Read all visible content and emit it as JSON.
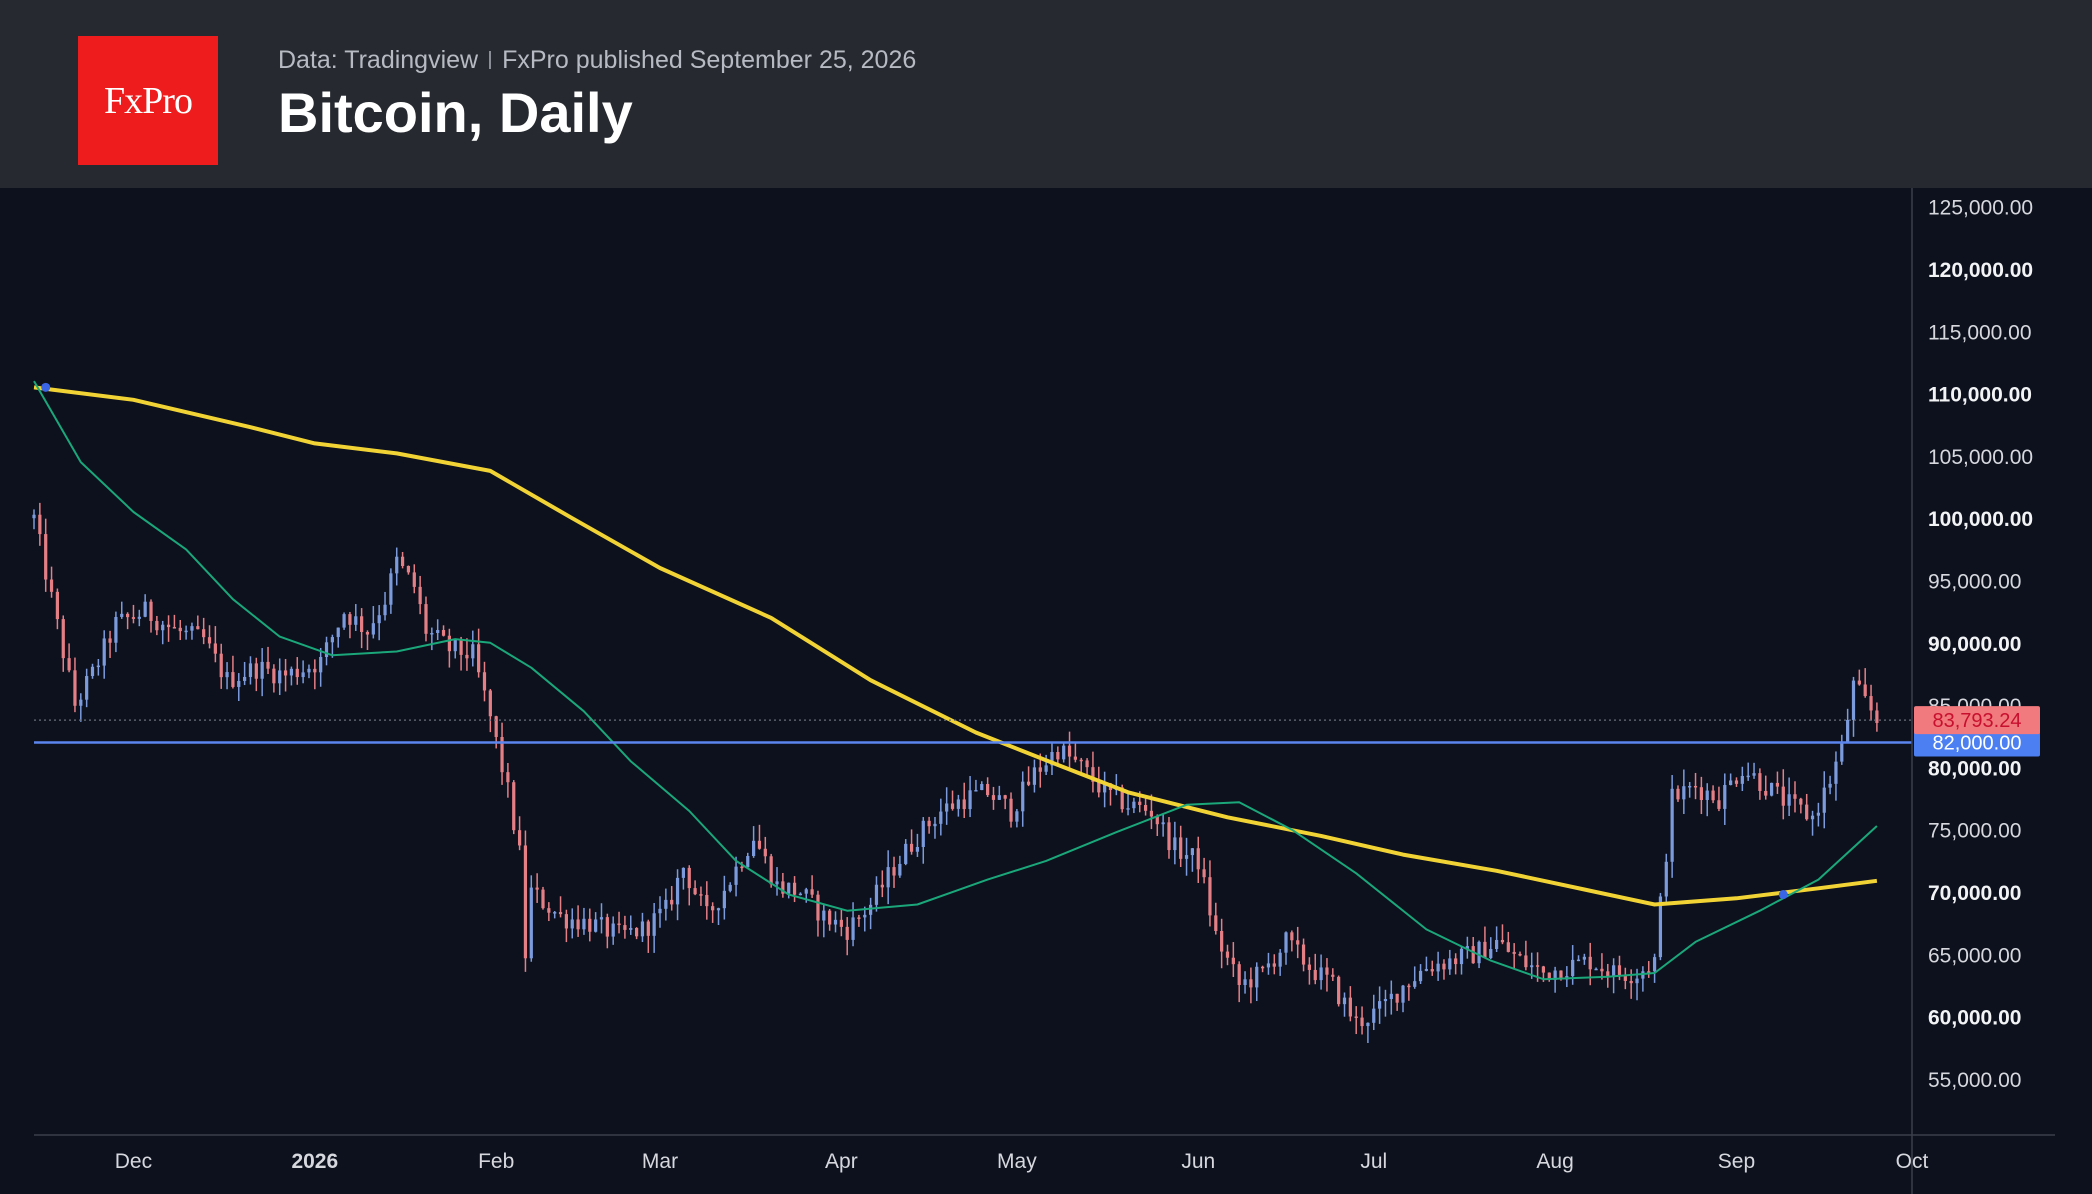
{
  "header": {
    "logo_text": "FxPro",
    "source": "Data: Tradingview",
    "published": "FxPro published September 25, 2026",
    "title": "Bitcoin, Daily"
  },
  "colors": {
    "header_bg": "#262930",
    "chart_bg": "#0c111d",
    "logo_bg": "#ee1c1c",
    "up_candle": "#7b9bdd",
    "down_candle": "#e57f86",
    "ma200": "#f2d335",
    "ma50": "#1ba779",
    "level_line": "#5b86ee",
    "last_price_tag": "#f07a7d",
    "level_tag": "#4b7ff2"
  },
  "chart_data": {
    "type": "line",
    "title": "Bitcoin, Daily",
    "x_tick_labels": [
      {
        "label": "Dec",
        "date": "2025-12-01",
        "major": false
      },
      {
        "label": "2026",
        "date": "2026-01-01",
        "major": true
      },
      {
        "label": "Feb",
        "date": "2026-02-01",
        "major": false
      },
      {
        "label": "Mar",
        "date": "2026-03-01",
        "major": false
      },
      {
        "label": "Apr",
        "date": "2026-04-01",
        "major": false
      },
      {
        "label": "May",
        "date": "2026-05-01",
        "major": false
      },
      {
        "label": "Jun",
        "date": "2026-06-01",
        "major": false
      },
      {
        "label": "Jul",
        "date": "2026-07-01",
        "major": false
      },
      {
        "label": "Aug",
        "date": "2026-08-01",
        "major": false
      },
      {
        "label": "Sep",
        "date": "2026-09-01",
        "major": false
      },
      {
        "label": "Oct",
        "date": "2026-10-01",
        "major": false
      }
    ],
    "y_tick_labels": [
      {
        "value": 55000,
        "label": "55,000.00",
        "major": false
      },
      {
        "value": 60000,
        "label": "60,000.00",
        "major": true
      },
      {
        "value": 65000,
        "label": "65,000.00",
        "major": false
      },
      {
        "value": 70000,
        "label": "70,000.00",
        "major": true
      },
      {
        "value": 75000,
        "label": "75,000.00",
        "major": false
      },
      {
        "value": 80000,
        "label": "80,000.00",
        "major": true
      },
      {
        "value": 85000,
        "label": "85,000.00",
        "major": false
      },
      {
        "value": 90000,
        "label": "90,000.00",
        "major": true
      },
      {
        "value": 95000,
        "label": "95,000.00",
        "major": false
      },
      {
        "value": 100000,
        "label": "100,000.00",
        "major": true
      },
      {
        "value": 105000,
        "label": "105,000.00",
        "major": false
      },
      {
        "value": 110000,
        "label": "110,000.00",
        "major": true
      },
      {
        "value": 115000,
        "label": "115,000.00",
        "major": false
      },
      {
        "value": 120000,
        "label": "120,000.00",
        "major": true
      },
      {
        "value": 125000,
        "label": "125,000.00",
        "major": false
      }
    ],
    "ylim": [
      50500,
      126500
    ],
    "xlim": [
      "2025-11-14",
      "2026-10-01"
    ],
    "price_path": [
      [
        "2025-11-14",
        100000
      ],
      [
        "2025-11-17",
        93500
      ],
      [
        "2025-11-21",
        85000
      ],
      [
        "2025-11-24",
        87500
      ],
      [
        "2025-11-28",
        91500
      ],
      [
        "2025-12-03",
        92500
      ],
      [
        "2025-12-08",
        91000
      ],
      [
        "2025-12-13",
        90200
      ],
      [
        "2025-12-17",
        87000
      ],
      [
        "2025-12-22",
        88000
      ],
      [
        "2025-12-27",
        87400
      ],
      [
        "2026-01-02",
        88500
      ],
      [
        "2026-01-06",
        92500
      ],
      [
        "2026-01-10",
        91000
      ],
      [
        "2026-01-13",
        93500
      ],
      [
        "2026-01-15",
        96500
      ],
      [
        "2026-01-18",
        94500
      ],
      [
        "2026-01-20",
        91000
      ],
      [
        "2026-01-24",
        89500
      ],
      [
        "2026-01-28",
        89000
      ],
      [
        "2026-01-31",
        84000
      ],
      [
        "2026-02-03",
        78000
      ],
      [
        "2026-02-05",
        73000
      ],
      [
        "2026-02-06",
        65000
      ],
      [
        "2026-02-07",
        70000
      ],
      [
        "2026-02-12",
        68000
      ],
      [
        "2026-02-17",
        67500
      ],
      [
        "2026-02-22",
        66500
      ],
      [
        "2026-02-26",
        67000
      ],
      [
        "2026-03-02",
        68500
      ],
      [
        "2026-03-05",
        72000
      ],
      [
        "2026-03-09",
        68000
      ],
      [
        "2026-03-13",
        71000
      ],
      [
        "2026-03-17",
        74500
      ],
      [
        "2026-03-21",
        70500
      ],
      [
        "2026-03-25",
        70000
      ],
      [
        "2026-03-29",
        68000
      ],
      [
        "2026-04-02",
        67000
      ],
      [
        "2026-04-06",
        69000
      ],
      [
        "2026-04-10",
        72000
      ],
      [
        "2026-04-14",
        74500
      ],
      [
        "2026-04-18",
        76500
      ],
      [
        "2026-04-22",
        77500
      ],
      [
        "2026-04-26",
        78000
      ],
      [
        "2026-04-30",
        76500
      ],
      [
        "2026-05-04",
        79500
      ],
      [
        "2026-05-08",
        81500
      ],
      [
        "2026-05-12",
        80000
      ],
      [
        "2026-05-16",
        78000
      ],
      [
        "2026-05-20",
        77000
      ],
      [
        "2026-05-24",
        76500
      ],
      [
        "2026-05-28",
        73500
      ],
      [
        "2026-06-01",
        72500
      ],
      [
        "2026-06-04",
        66500
      ],
      [
        "2026-06-08",
        62500
      ],
      [
        "2026-06-12",
        63500
      ],
      [
        "2026-06-16",
        66000
      ],
      [
        "2026-06-20",
        64000
      ],
      [
        "2026-06-24",
        62500
      ],
      [
        "2026-06-28",
        59500
      ],
      [
        "2026-07-02",
        60500
      ],
      [
        "2026-07-06",
        62500
      ],
      [
        "2026-07-10",
        64000
      ],
      [
        "2026-07-14",
        64500
      ],
      [
        "2026-07-18",
        65000
      ],
      [
        "2026-07-22",
        66000
      ],
      [
        "2026-07-26",
        64500
      ],
      [
        "2026-07-30",
        63500
      ],
      [
        "2026-08-03",
        64000
      ],
      [
        "2026-08-07",
        64500
      ],
      [
        "2026-08-11",
        63500
      ],
      [
        "2026-08-15",
        63500
      ],
      [
        "2026-08-18",
        64500
      ],
      [
        "2026-08-19",
        69000
      ],
      [
        "2026-08-21",
        77500
      ],
      [
        "2026-08-25",
        78500
      ],
      [
        "2026-08-29",
        77500
      ],
      [
        "2026-09-02",
        80000
      ],
      [
        "2026-09-06",
        78500
      ],
      [
        "2026-09-10",
        77000
      ],
      [
        "2026-09-14",
        76000
      ],
      [
        "2026-09-17",
        79000
      ],
      [
        "2026-09-19",
        81500
      ],
      [
        "2026-09-21",
        86500
      ],
      [
        "2026-09-24",
        84500
      ],
      [
        "2026-09-25",
        83800
      ]
    ],
    "series": [
      {
        "name": "",
        "kind": "ma_long",
        "color": "#f2d335",
        "points": [
          [
            "2025-11-14",
            110500
          ],
          [
            "2025-12-01",
            109500
          ],
          [
            "2025-12-21",
            107300
          ],
          [
            "2026-01-01",
            106000
          ],
          [
            "2026-01-15",
            105200
          ],
          [
            "2026-01-31",
            103800
          ],
          [
            "2026-02-14",
            100000
          ],
          [
            "2026-03-01",
            96000
          ],
          [
            "2026-03-20",
            92000
          ],
          [
            "2026-04-06",
            87000
          ],
          [
            "2026-04-24",
            82800
          ],
          [
            "2026-05-08",
            80200
          ],
          [
            "2026-05-20",
            78000
          ],
          [
            "2026-06-06",
            76000
          ],
          [
            "2026-06-22",
            74500
          ],
          [
            "2026-07-06",
            73000
          ],
          [
            "2026-07-22",
            71700
          ],
          [
            "2026-08-06",
            70200
          ],
          [
            "2026-08-18",
            69000
          ],
          [
            "2026-09-01",
            69500
          ],
          [
            "2026-09-15",
            70300
          ],
          [
            "2026-09-25",
            70900
          ]
        ]
      },
      {
        "name": "",
        "kind": "ma_short",
        "color": "#1ba779",
        "points": [
          [
            "2025-11-14",
            111000
          ],
          [
            "2025-11-22",
            104500
          ],
          [
            "2025-12-01",
            100500
          ],
          [
            "2025-12-10",
            97500
          ],
          [
            "2025-12-18",
            93500
          ],
          [
            "2025-12-26",
            90500
          ],
          [
            "2026-01-04",
            89000
          ],
          [
            "2026-01-15",
            89300
          ],
          [
            "2026-01-25",
            90300
          ],
          [
            "2026-01-31",
            90000
          ],
          [
            "2026-02-07",
            88000
          ],
          [
            "2026-02-16",
            84500
          ],
          [
            "2026-02-24",
            80500
          ],
          [
            "2026-03-06",
            76500
          ],
          [
            "2026-03-14",
            72500
          ],
          [
            "2026-03-23",
            69800
          ],
          [
            "2026-04-02",
            68500
          ],
          [
            "2026-04-14",
            69000
          ],
          [
            "2026-04-26",
            71000
          ],
          [
            "2026-05-06",
            72500
          ],
          [
            "2026-05-18",
            74800
          ],
          [
            "2026-05-30",
            77000
          ],
          [
            "2026-06-08",
            77200
          ],
          [
            "2026-06-17",
            75000
          ],
          [
            "2026-06-28",
            71500
          ],
          [
            "2026-07-10",
            67000
          ],
          [
            "2026-07-21",
            64500
          ],
          [
            "2026-07-30",
            63000
          ],
          [
            "2026-08-10",
            63200
          ],
          [
            "2026-08-18",
            63500
          ],
          [
            "2026-08-25",
            66000
          ],
          [
            "2026-09-05",
            68500
          ],
          [
            "2026-09-15",
            71000
          ],
          [
            "2026-09-25",
            75300
          ]
        ]
      }
    ],
    "cross_markers": [
      {
        "date": "2025-11-16",
        "value": 110500
      },
      {
        "date": "2026-09-09",
        "value": 69800
      }
    ],
    "horizontal_level": {
      "value": 82000,
      "label": "82,000.00"
    },
    "last_price": {
      "value": 83793.24,
      "label": "83,793.24"
    },
    "grid": false,
    "legend": "none"
  }
}
